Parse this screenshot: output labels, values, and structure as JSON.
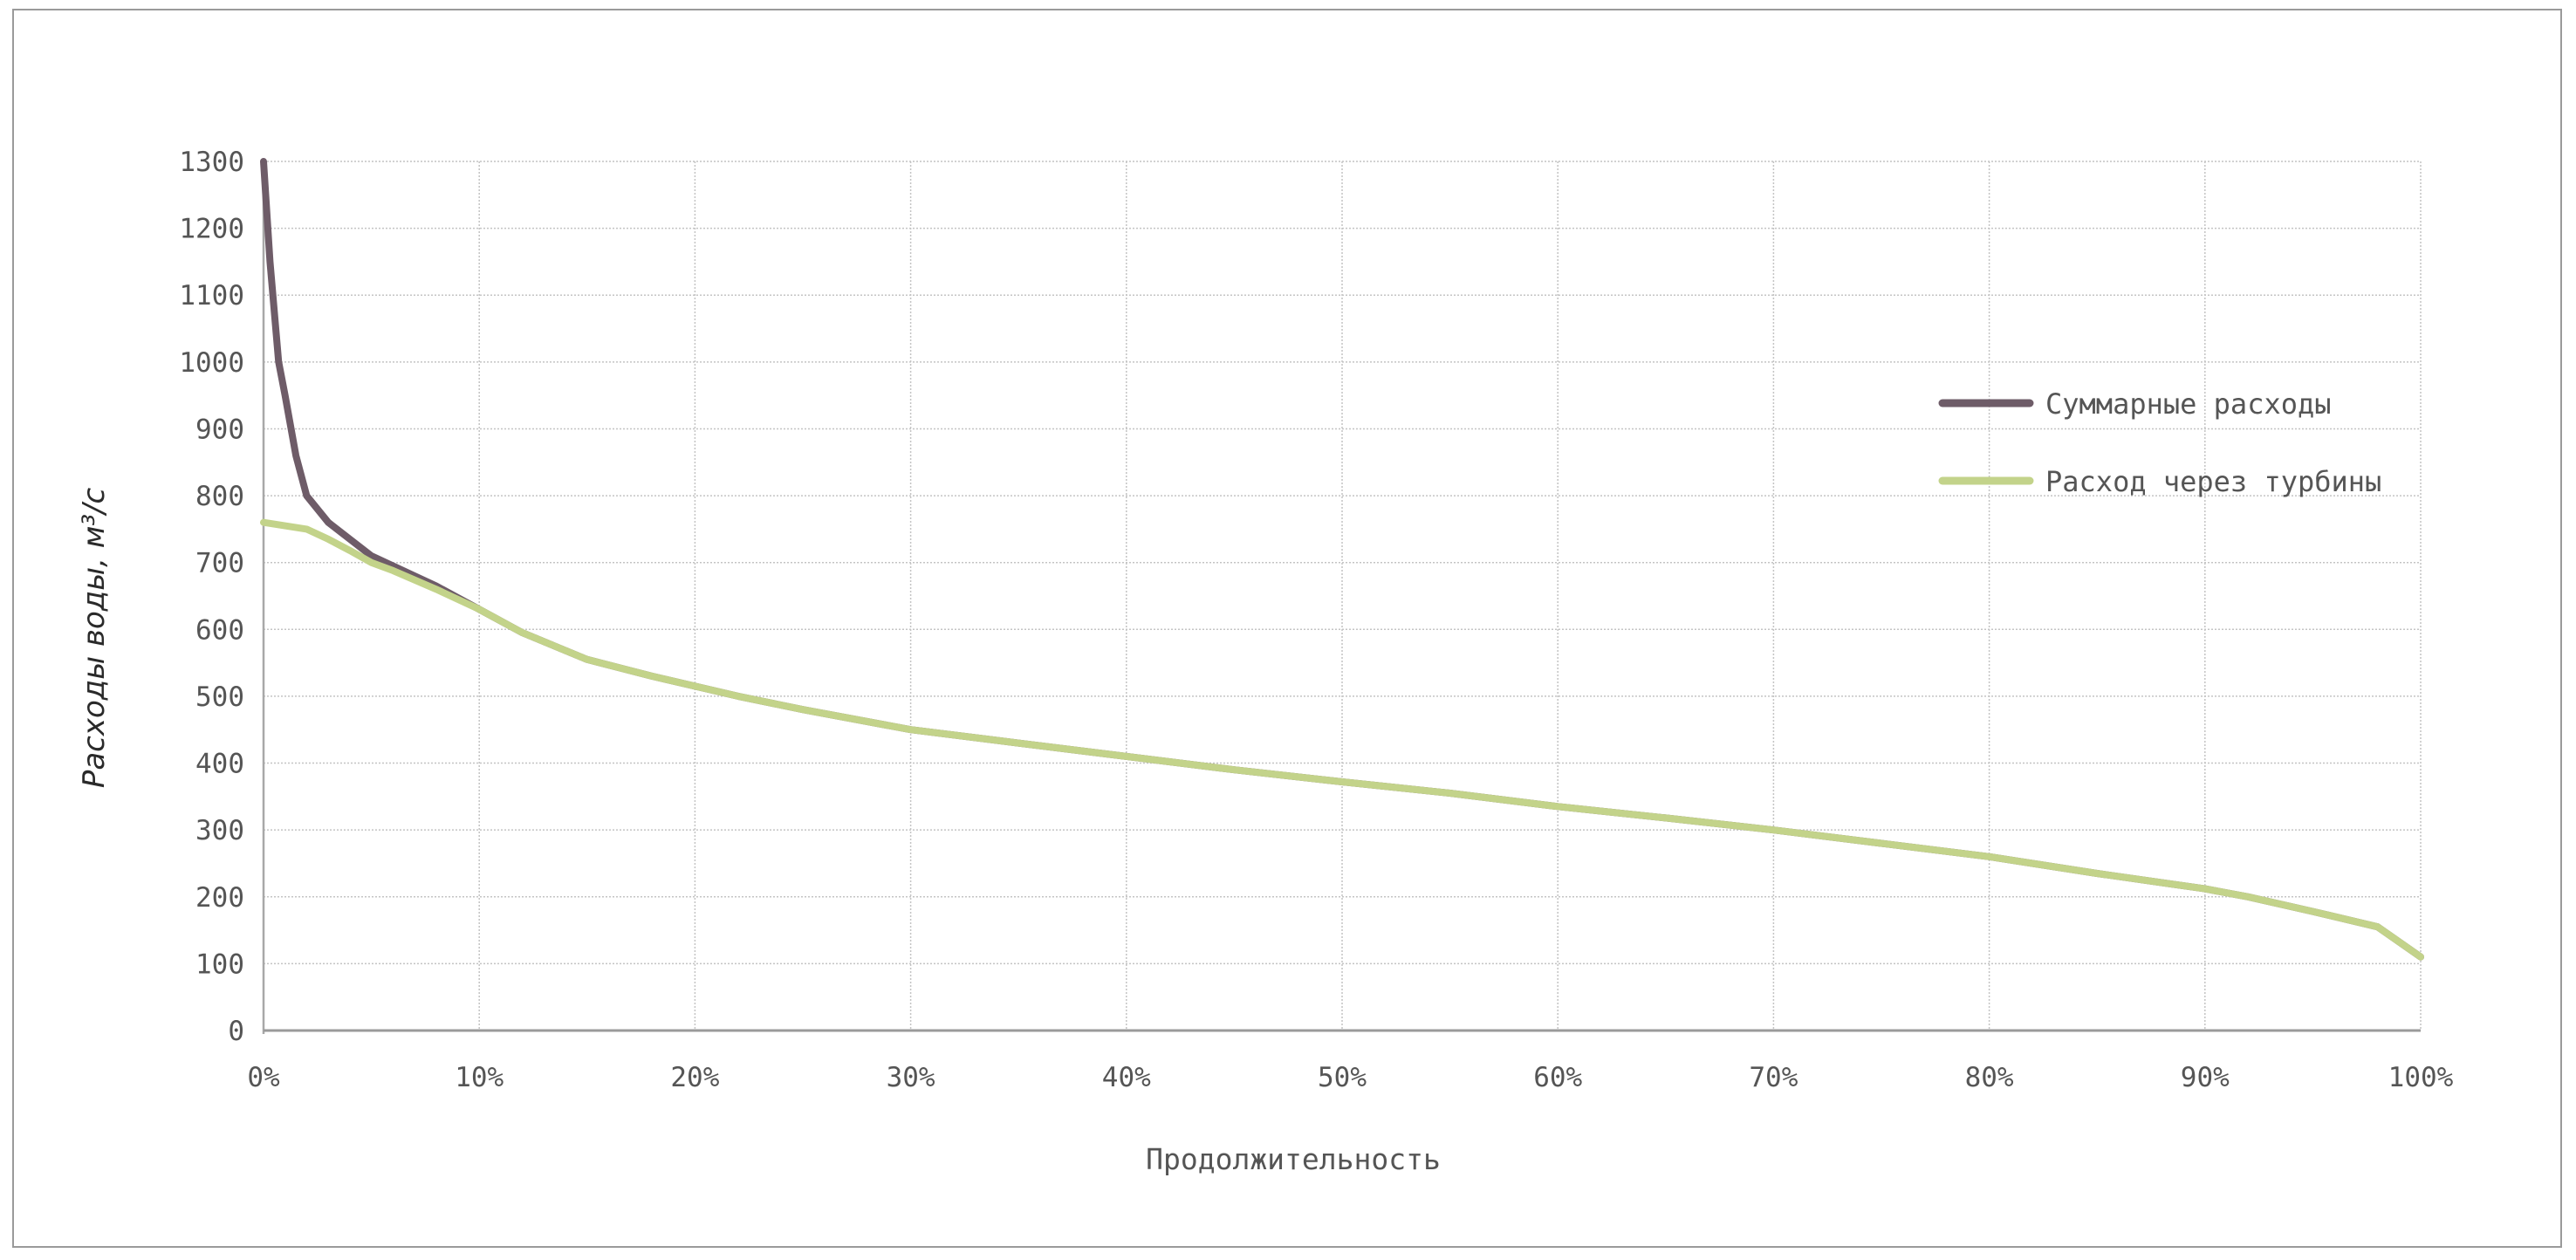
{
  "chart_data": {
    "type": "line",
    "xlabel": "Продолжительность",
    "ylabel": "Расходы воды, м³/с",
    "xlim": [
      0,
      100
    ],
    "ylim": [
      0,
      1300
    ],
    "x_ticks": [
      0,
      10,
      20,
      30,
      40,
      50,
      60,
      70,
      80,
      90,
      100
    ],
    "x_tick_labels": [
      "0%",
      "10%",
      "20%",
      "30%",
      "40%",
      "50%",
      "60%",
      "70%",
      "80%",
      "90%",
      "100%"
    ],
    "y_ticks": [
      0,
      100,
      200,
      300,
      400,
      500,
      600,
      700,
      800,
      900,
      1000,
      1100,
      1200,
      1300
    ],
    "grid": true,
    "legend_position": "right",
    "series": [
      {
        "name": "Суммарные расходы",
        "color": "#6e5c68",
        "x": [
          0,
          0.3,
          0.7,
          1,
          1.5,
          2,
          3,
          4,
          5,
          6,
          7,
          8,
          10,
          12,
          15,
          18,
          20,
          22,
          25,
          30,
          35,
          40,
          45,
          50,
          55,
          60,
          65,
          70,
          75,
          80,
          85,
          90,
          92,
          95,
          98,
          100
        ],
        "y": [
          1300,
          1150,
          1000,
          950,
          860,
          800,
          760,
          735,
          710,
          695,
          680,
          665,
          630,
          595,
          555,
          530,
          515,
          500,
          480,
          450,
          430,
          410,
          390,
          372,
          355,
          335,
          318,
          300,
          280,
          260,
          235,
          212,
          200,
          178,
          155,
          110
        ]
      },
      {
        "name": "Расход через турбины",
        "color": "#c3d38a",
        "x": [
          0,
          1,
          2,
          3,
          4,
          5,
          6,
          8,
          10,
          12,
          15,
          18,
          20,
          22,
          25,
          30,
          35,
          40,
          45,
          50,
          55,
          60,
          65,
          70,
          75,
          80,
          85,
          90,
          92,
          95,
          98,
          100
        ],
        "y": [
          760,
          755,
          750,
          735,
          718,
          700,
          688,
          660,
          630,
          595,
          555,
          530,
          515,
          500,
          480,
          450,
          430,
          410,
          390,
          372,
          355,
          335,
          318,
          300,
          280,
          260,
          235,
          212,
          200,
          178,
          155,
          110
        ]
      }
    ]
  }
}
